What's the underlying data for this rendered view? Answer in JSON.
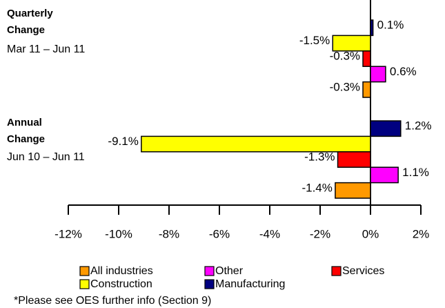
{
  "chart_data": {
    "type": "bar",
    "orientation": "horizontal",
    "categories": [
      "Quarterly Change",
      "Annual Change"
    ],
    "category_periods": [
      "Mar 11 – Jun 11",
      "Jun 10 – Jun 11"
    ],
    "series": [
      {
        "name": "Manufacturing",
        "color": "#000080",
        "values": [
          0.1,
          1.2
        ],
        "value_labels": [
          "0.1%",
          "1.2%"
        ]
      },
      {
        "name": "Construction",
        "color": "#ffff00",
        "values": [
          -1.5,
          -9.1
        ],
        "value_labels": [
          "-1.5%",
          "-9.1%"
        ]
      },
      {
        "name": "Services",
        "color": "#ff0000",
        "values": [
          -0.3,
          -1.3
        ],
        "value_labels": [
          "-0.3%",
          "-1.3%"
        ]
      },
      {
        "name": "Other",
        "color": "#ff00ff",
        "values": [
          0.6,
          1.1
        ],
        "value_labels": [
          "0.6%",
          "1.1%"
        ]
      },
      {
        "name": "All industries",
        "color": "#ff9900",
        "values": [
          -0.3,
          -1.4
        ],
        "value_labels": [
          "-0.3%",
          "-1.4%"
        ]
      }
    ],
    "xlim": [
      -12,
      2
    ],
    "xticks": [
      {
        "value": -12,
        "label": "-12%"
      },
      {
        "value": -10,
        "label": "-10%"
      },
      {
        "value": -8,
        "label": "-8%"
      },
      {
        "value": -6,
        "label": "-6%"
      },
      {
        "value": -4,
        "label": "-4%"
      },
      {
        "value": -2,
        "label": "-2%"
      },
      {
        "value": 0,
        "label": "0%"
      },
      {
        "value": 2,
        "label": "2%"
      }
    ],
    "footnote": "*Please see OES further info (Section 9)"
  }
}
